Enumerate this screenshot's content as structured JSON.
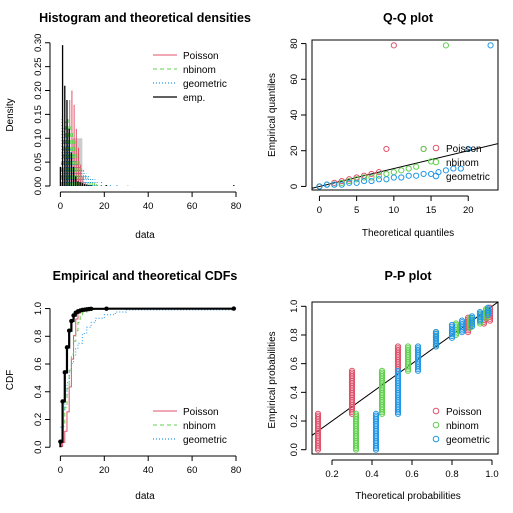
{
  "colors": {
    "poisson": "#DF536B",
    "nbinom": "#61D04F",
    "geometric": "#2297E6",
    "emp": "#000000",
    "hist_fill": "#cccccc",
    "axis": "#000000",
    "ref_line": "#000000"
  },
  "chart_data": [
    {
      "type": "histogram",
      "title": "Histogram and theoretical densities",
      "xlabel": "data",
      "ylabel": "Density",
      "xlim": [
        -2,
        80
      ],
      "ylim": [
        0,
        0.31
      ],
      "xticks": [
        0,
        20,
        40,
        60,
        80
      ],
      "yticks": [
        0,
        0.05,
        0.1,
        0.15,
        0.2,
        0.25,
        0.3
      ],
      "ytick_labels": [
        "0.00",
        "0.05",
        "0.10",
        "0.15",
        "0.20",
        "0.25",
        "0.30"
      ],
      "histogram": {
        "bins": [
          [
            5,
            10,
            0.1
          ]
        ]
      },
      "legend": {
        "position": "top-right",
        "entries": [
          "Poisson",
          "nbinom",
          "geometric",
          "emp."
        ]
      },
      "series": [
        {
          "name": "Poisson",
          "style": "solid",
          "x": [
            0,
            1,
            2,
            3,
            4,
            5,
            6,
            7,
            8,
            9,
            10,
            11,
            12,
            13,
            14,
            15
          ],
          "y": [
            0.005,
            0.03,
            0.08,
            0.14,
            0.18,
            0.2,
            0.17,
            0.12,
            0.08,
            0.045,
            0.02,
            0.008,
            0.003,
            0.001,
            0.0005,
            0.0002
          ]
        },
        {
          "name": "nbinom",
          "style": "dashed",
          "x": [
            0,
            1,
            2,
            3,
            4,
            5,
            6,
            7,
            8,
            9,
            10,
            11,
            12,
            13,
            14,
            15,
            16,
            18,
            20
          ],
          "y": [
            0.05,
            0.1,
            0.135,
            0.14,
            0.13,
            0.115,
            0.095,
            0.075,
            0.06,
            0.045,
            0.034,
            0.025,
            0.018,
            0.013,
            0.009,
            0.006,
            0.004,
            0.002,
            0.001
          ]
        },
        {
          "name": "geometric",
          "style": "dotted",
          "x": [
            0,
            1,
            2,
            3,
            4,
            5,
            6,
            7,
            8,
            9,
            10,
            11,
            12,
            13,
            14,
            15,
            16,
            18,
            20,
            22,
            25,
            30
          ],
          "y": [
            0.145,
            0.124,
            0.106,
            0.09,
            0.077,
            0.066,
            0.056,
            0.048,
            0.041,
            0.035,
            0.03,
            0.026,
            0.022,
            0.019,
            0.016,
            0.014,
            0.012,
            0.009,
            0.006,
            0.005,
            0.003,
            0.001
          ]
        },
        {
          "name": "emp.",
          "style": "solid",
          "x": [
            0,
            1,
            2,
            3,
            4,
            5,
            6,
            7,
            8,
            9,
            10,
            11,
            12,
            13,
            14,
            21,
            79
          ],
          "y": [
            0.04,
            0.295,
            0.21,
            0.18,
            0.12,
            0.07,
            0.04,
            0.02,
            0.01,
            0.008,
            0.006,
            0.004,
            0.003,
            0.002,
            0.002,
            0.002,
            0.002
          ]
        }
      ]
    },
    {
      "type": "scatter",
      "title": "Q-Q plot",
      "xlabel": "Theoretical quantiles",
      "ylabel": "Empirical quantiles",
      "xlim": [
        -1,
        24
      ],
      "ylim": [
        -2,
        82
      ],
      "xticks": [
        0,
        5,
        10,
        15,
        20
      ],
      "yticks": [
        0,
        20,
        40,
        60,
        80
      ],
      "reference_line": {
        "intercept": 0,
        "slope": 1
      },
      "legend": {
        "position": "bottom-right",
        "entries": [
          "Poisson",
          "nbinom",
          "geometric"
        ]
      },
      "series": [
        {
          "name": "Poisson",
          "x": [
            0,
            1,
            2,
            3,
            4,
            5,
            6,
            7,
            8,
            9,
            10,
            14
          ],
          "y": [
            0,
            1,
            2,
            3,
            4,
            5,
            6,
            7,
            8,
            21,
            79,
            21
          ]
        },
        {
          "name": "nbinom",
          "x": [
            0,
            1,
            2,
            3,
            4,
            5,
            6,
            7,
            8,
            9,
            10,
            11,
            12,
            13,
            14,
            15,
            17
          ],
          "y": [
            0,
            1,
            1,
            2,
            3,
            4,
            5,
            5,
            6,
            7,
            8,
            9,
            10,
            11,
            21,
            14,
            79
          ]
        },
        {
          "name": "geometric",
          "x": [
            0,
            1,
            2,
            3,
            4,
            5,
            6,
            7,
            8,
            9,
            10,
            11,
            12,
            13,
            14,
            15,
            16,
            17,
            18,
            19,
            20,
            23
          ],
          "y": [
            0,
            1,
            1,
            1,
            2,
            2,
            3,
            3,
            4,
            4,
            5,
            5,
            6,
            6,
            7,
            7,
            8,
            9,
            10,
            10,
            21,
            79
          ]
        }
      ]
    },
    {
      "type": "line",
      "title": "Empirical and theoretical CDFs",
      "xlabel": "data",
      "ylabel": "CDF",
      "xlim": [
        -2,
        80
      ],
      "ylim": [
        -0.02,
        1.04
      ],
      "xticks": [
        0,
        20,
        40,
        60,
        80
      ],
      "yticks": [
        0,
        0.2,
        0.4,
        0.6,
        0.8,
        1
      ],
      "ytick_labels": [
        "0.0",
        "0.2",
        "0.4",
        "0.6",
        "0.8",
        "1.0"
      ],
      "legend": {
        "position": "bottom-right",
        "entries": [
          "Poisson",
          "nbinom",
          "geometric"
        ]
      },
      "series": [
        {
          "name": "emp.",
          "style": "step",
          "x": [
            0,
            1,
            2,
            3,
            4,
            5,
            6,
            7,
            8,
            9,
            10,
            11,
            12,
            13,
            14,
            21,
            79
          ],
          "y": [
            0.04,
            0.33,
            0.54,
            0.72,
            0.84,
            0.91,
            0.95,
            0.97,
            0.98,
            0.985,
            0.99,
            0.992,
            0.994,
            0.996,
            0.998,
            0.999,
            1.0
          ]
        },
        {
          "name": "Poisson",
          "style": "solid",
          "x": [
            0,
            1,
            2,
            3,
            4,
            5,
            6,
            7,
            8,
            9,
            10,
            11,
            12,
            14,
            20,
            80
          ],
          "y": [
            0.005,
            0.035,
            0.115,
            0.255,
            0.435,
            0.635,
            0.805,
            0.925,
            0.965,
            0.985,
            0.995,
            0.998,
            0.999,
            1.0,
            1.0,
            1.0
          ]
        },
        {
          "name": "nbinom",
          "style": "dashed",
          "x": [
            0,
            1,
            2,
            3,
            4,
            5,
            6,
            7,
            8,
            9,
            10,
            12,
            14,
            16,
            20,
            80
          ],
          "y": [
            0.05,
            0.15,
            0.285,
            0.425,
            0.555,
            0.67,
            0.765,
            0.84,
            0.9,
            0.945,
            0.97,
            0.985,
            0.993,
            0.997,
            0.999,
            1.0
          ]
        },
        {
          "name": "geometric",
          "style": "dotted",
          "x": [
            0,
            1,
            2,
            3,
            4,
            5,
            6,
            7,
            8,
            10,
            12,
            14,
            16,
            20,
            25,
            30,
            80
          ],
          "y": [
            0.145,
            0.27,
            0.375,
            0.465,
            0.54,
            0.605,
            0.66,
            0.71,
            0.75,
            0.82,
            0.865,
            0.9,
            0.93,
            0.955,
            0.975,
            0.99,
            1.0
          ]
        }
      ]
    },
    {
      "type": "scatter",
      "title": "P-P plot",
      "xlabel": "Theoretical probabilities",
      "ylabel": "Empirical probabilities",
      "xlim": [
        0.1,
        1.03
      ],
      "ylim": [
        -0.03,
        1.03
      ],
      "xticks": [
        0.2,
        0.4,
        0.6,
        0.8,
        1
      ],
      "xtick_labels": [
        "0.2",
        "0.4",
        "0.6",
        "0.8",
        "1.0"
      ],
      "yticks": [
        0,
        0.2,
        0.4,
        0.6,
        0.8,
        1
      ],
      "ytick_labels": [
        "0.0",
        "0.2",
        "0.4",
        "0.6",
        "0.8",
        "1.0"
      ],
      "reference_line": {
        "intercept": 0,
        "slope": 1
      },
      "legend": {
        "position": "bottom-right",
        "entries": [
          "Poisson",
          "nbinom",
          "geometric"
        ]
      },
      "series": [
        {
          "name": "Poisson",
          "columns": [
            [
              0.13,
              0.0,
              0.25
            ],
            [
              0.3,
              0.25,
              0.55
            ],
            [
              0.53,
              0.55,
              0.72
            ],
            [
              0.72,
              0.72,
              0.82
            ],
            [
              0.88,
              0.82,
              0.92
            ],
            [
              0.96,
              0.88,
              0.95
            ],
            [
              0.99,
              0.9,
              0.99
            ]
          ]
        },
        {
          "name": "nbinom",
          "columns": [
            [
              0.32,
              0.0,
              0.25
            ],
            [
              0.45,
              0.25,
              0.55
            ],
            [
              0.58,
              0.55,
              0.72
            ],
            [
              0.72,
              0.72,
              0.82
            ],
            [
              0.82,
              0.8,
              0.88
            ],
            [
              0.89,
              0.85,
              0.92
            ],
            [
              0.94,
              0.88,
              0.95
            ],
            [
              0.97,
              0.92,
              0.98
            ]
          ]
        },
        {
          "name": "geometric",
          "columns": [
            [
              0.42,
              0.0,
              0.25
            ],
            [
              0.53,
              0.25,
              0.55
            ],
            [
              0.63,
              0.55,
              0.72
            ],
            [
              0.72,
              0.72,
              0.82
            ],
            [
              0.8,
              0.78,
              0.87
            ],
            [
              0.85,
              0.82,
              0.9
            ],
            [
              0.9,
              0.86,
              0.93
            ],
            [
              0.94,
              0.9,
              0.96
            ],
            [
              0.98,
              0.94,
              0.99
            ]
          ]
        }
      ]
    }
  ]
}
